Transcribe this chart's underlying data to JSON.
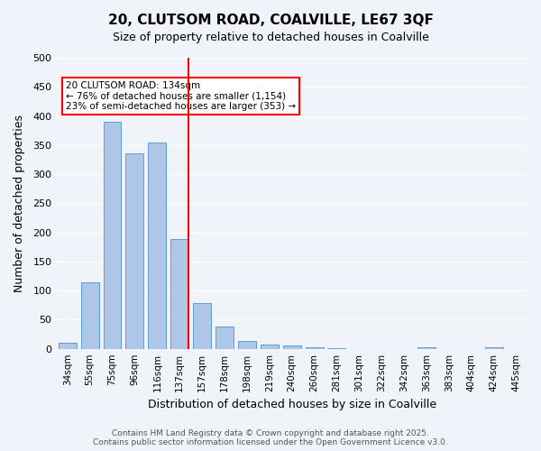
{
  "title_line1": "20, CLUTSOM ROAD, COALVILLE, LE67 3QF",
  "title_line2": "Size of property relative to detached houses in Coalville",
  "xlabel": "Distribution of detached houses by size in Coalville",
  "ylabel": "Number of detached properties",
  "bins": [
    "34sqm",
    "55sqm",
    "75sqm",
    "96sqm",
    "116sqm",
    "137sqm",
    "157sqm",
    "178sqm",
    "198sqm",
    "219sqm",
    "240sqm",
    "260sqm",
    "281sqm",
    "301sqm",
    "322sqm",
    "342sqm",
    "363sqm",
    "383sqm",
    "404sqm",
    "424sqm",
    "445sqm"
  ],
  "values": [
    10,
    114,
    390,
    335,
    355,
    188,
    79,
    38,
    13,
    8,
    5,
    3,
    1,
    0,
    0,
    0,
    3,
    0,
    0,
    3,
    0
  ],
  "bar_color": "#aec6e8",
  "bar_edge_color": "#5a9fd4",
  "vline_x": 7,
  "vline_color": "red",
  "annotation_text": "20 CLUTSOM ROAD: 134sqm\n← 76% of detached houses are smaller (1,154)\n23% of semi-detached houses are larger (353) →",
  "annotation_box_color": "white",
  "annotation_box_edge_color": "red",
  "ylim": [
    0,
    500
  ],
  "yticks": [
    0,
    50,
    100,
    150,
    200,
    250,
    300,
    350,
    400,
    450,
    500
  ],
  "footnote": "Contains HM Land Registry data © Crown copyright and database right 2025.\nContains public sector information licensed under the Open Government Licence v3.0.",
  "bg_color": "#f0f4fa",
  "grid_color": "white"
}
